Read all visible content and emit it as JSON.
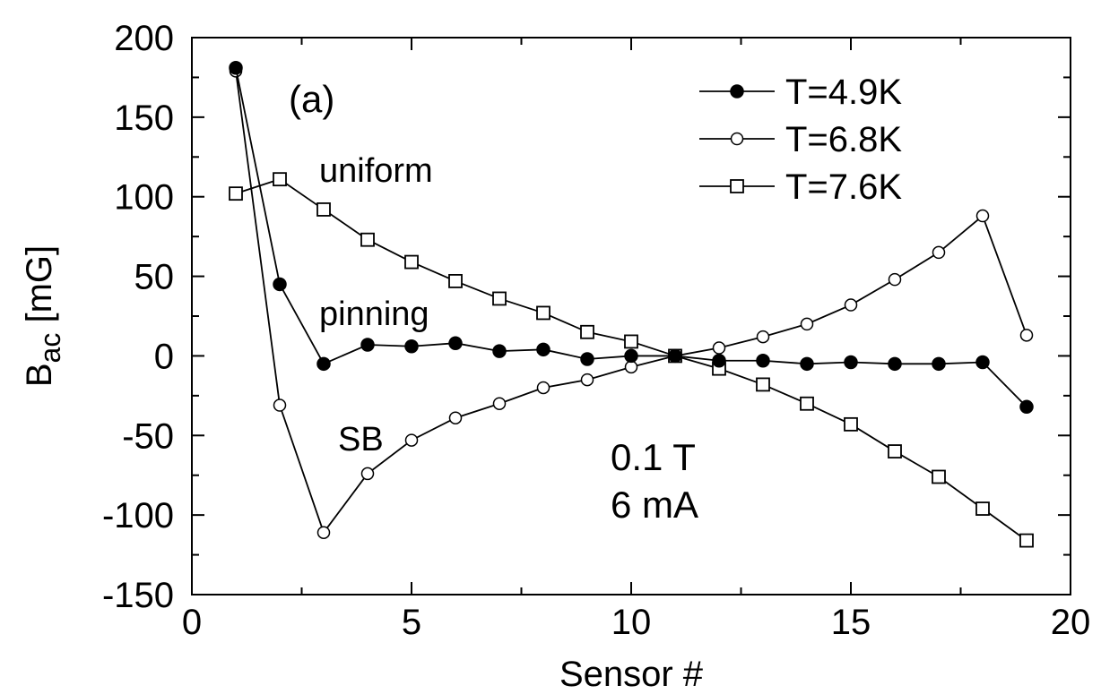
{
  "chart_data": {
    "type": "line",
    "xlabel": "Sensor #",
    "ylabel": "B",
    "ylabel_sub": "ac",
    "ylabel_unit": " [mG]",
    "xlim": [
      0,
      20
    ],
    "ylim": [
      -150,
      200
    ],
    "xticks": [
      0,
      5,
      10,
      15,
      20
    ],
    "yticks": [
      -150,
      -100,
      -50,
      0,
      50,
      100,
      150,
      200
    ],
    "x": [
      1,
      2,
      3,
      4,
      5,
      6,
      7,
      8,
      9,
      10,
      11,
      12,
      13,
      14,
      15,
      16,
      17,
      18,
      19
    ],
    "grid": false,
    "legend_position": "top-right",
    "series": [
      {
        "name": "T=4.9K",
        "marker": "filled-circle",
        "values": [
          181,
          45,
          -5,
          7,
          6,
          8,
          3,
          4,
          -2,
          0,
          0,
          -3,
          -3,
          -5,
          -4,
          -5,
          -5,
          -4,
          -32
        ]
      },
      {
        "name": "T=6.8K",
        "marker": "open-circle",
        "values": [
          179,
          -31,
          -111,
          -74,
          -53,
          -39,
          -30,
          -20,
          -15,
          -7,
          0,
          5,
          12,
          20,
          32,
          48,
          65,
          88,
          13
        ]
      },
      {
        "name": "T=7.6K",
        "marker": "open-square",
        "values": [
          102,
          111,
          92,
          73,
          59,
          47,
          36,
          27,
          15,
          9,
          0,
          -8,
          -18,
          -30,
          -43,
          -60,
          -76,
          -96,
          -116
        ]
      }
    ],
    "annotations": {
      "panel": "(a)",
      "uniform": "uniform",
      "pinning": "pinning",
      "sb": "SB",
      "field": "0.1 T",
      "current": "6 mA"
    }
  }
}
